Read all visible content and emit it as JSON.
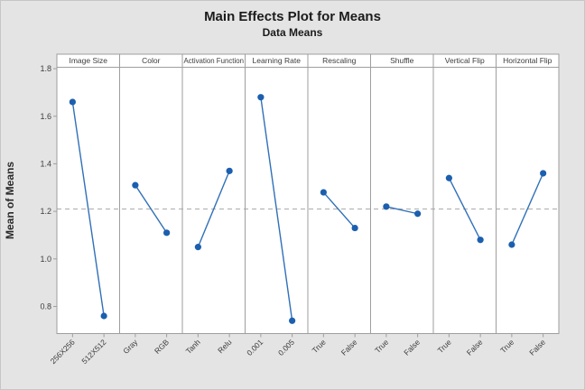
{
  "window": {
    "background": "#e4e4e4",
    "frame_border": "#c6c6c6"
  },
  "title": "Main Effects Plot for Means",
  "subtitle": "Data Means",
  "chart_data": {
    "type": "line",
    "variant": "main-effects-plot",
    "title": "Main Effects Plot for Means",
    "subtitle": "Data Means",
    "ylabel": "Mean of Means",
    "y_tick_labels": [
      "1.8",
      "1.6",
      "1.4",
      "1.2",
      "1.0",
      "0.8"
    ],
    "y_tick_values": [
      1.8,
      1.6,
      1.4,
      1.2,
      1.0,
      0.8
    ],
    "ylim": [
      0.686,
      1.806
    ],
    "reference_line": 1.21,
    "grid": false,
    "legend": "none",
    "panels": [
      {
        "factor": "Image Size",
        "categories": [
          "256X256",
          "512X512"
        ],
        "values": [
          1.66,
          0.76
        ]
      },
      {
        "factor": "Color",
        "categories": [
          "Gray",
          "RGB"
        ],
        "values": [
          1.31,
          1.11
        ]
      },
      {
        "factor": "Activation Function",
        "categories": [
          "Tanh",
          "Relu"
        ],
        "values": [
          1.05,
          1.37
        ]
      },
      {
        "factor": "Learning Rate",
        "categories": [
          "0.001",
          "0.005"
        ],
        "values": [
          1.68,
          0.74
        ]
      },
      {
        "factor": "Rescaling",
        "categories": [
          "True",
          "False"
        ],
        "values": [
          1.28,
          1.13
        ]
      },
      {
        "factor": "Shuffle",
        "categories": [
          "True",
          "False"
        ],
        "values": [
          1.22,
          1.19
        ]
      },
      {
        "factor": "Vertical Flip",
        "categories": [
          "True",
          "False"
        ],
        "values": [
          1.34,
          1.08
        ]
      },
      {
        "factor": "Horizontal Flip",
        "categories": [
          "True",
          "False"
        ],
        "values": [
          1.06,
          1.36
        ]
      }
    ],
    "colors": {
      "point": "#1b5faf",
      "line": "#3070b8",
      "reference_line": "#b5b5b5",
      "panel_border": "#9e9e9e",
      "panel_background": "#ffffff",
      "text": "#3d3d3d",
      "axis_text": "#3d3d3d"
    }
  }
}
